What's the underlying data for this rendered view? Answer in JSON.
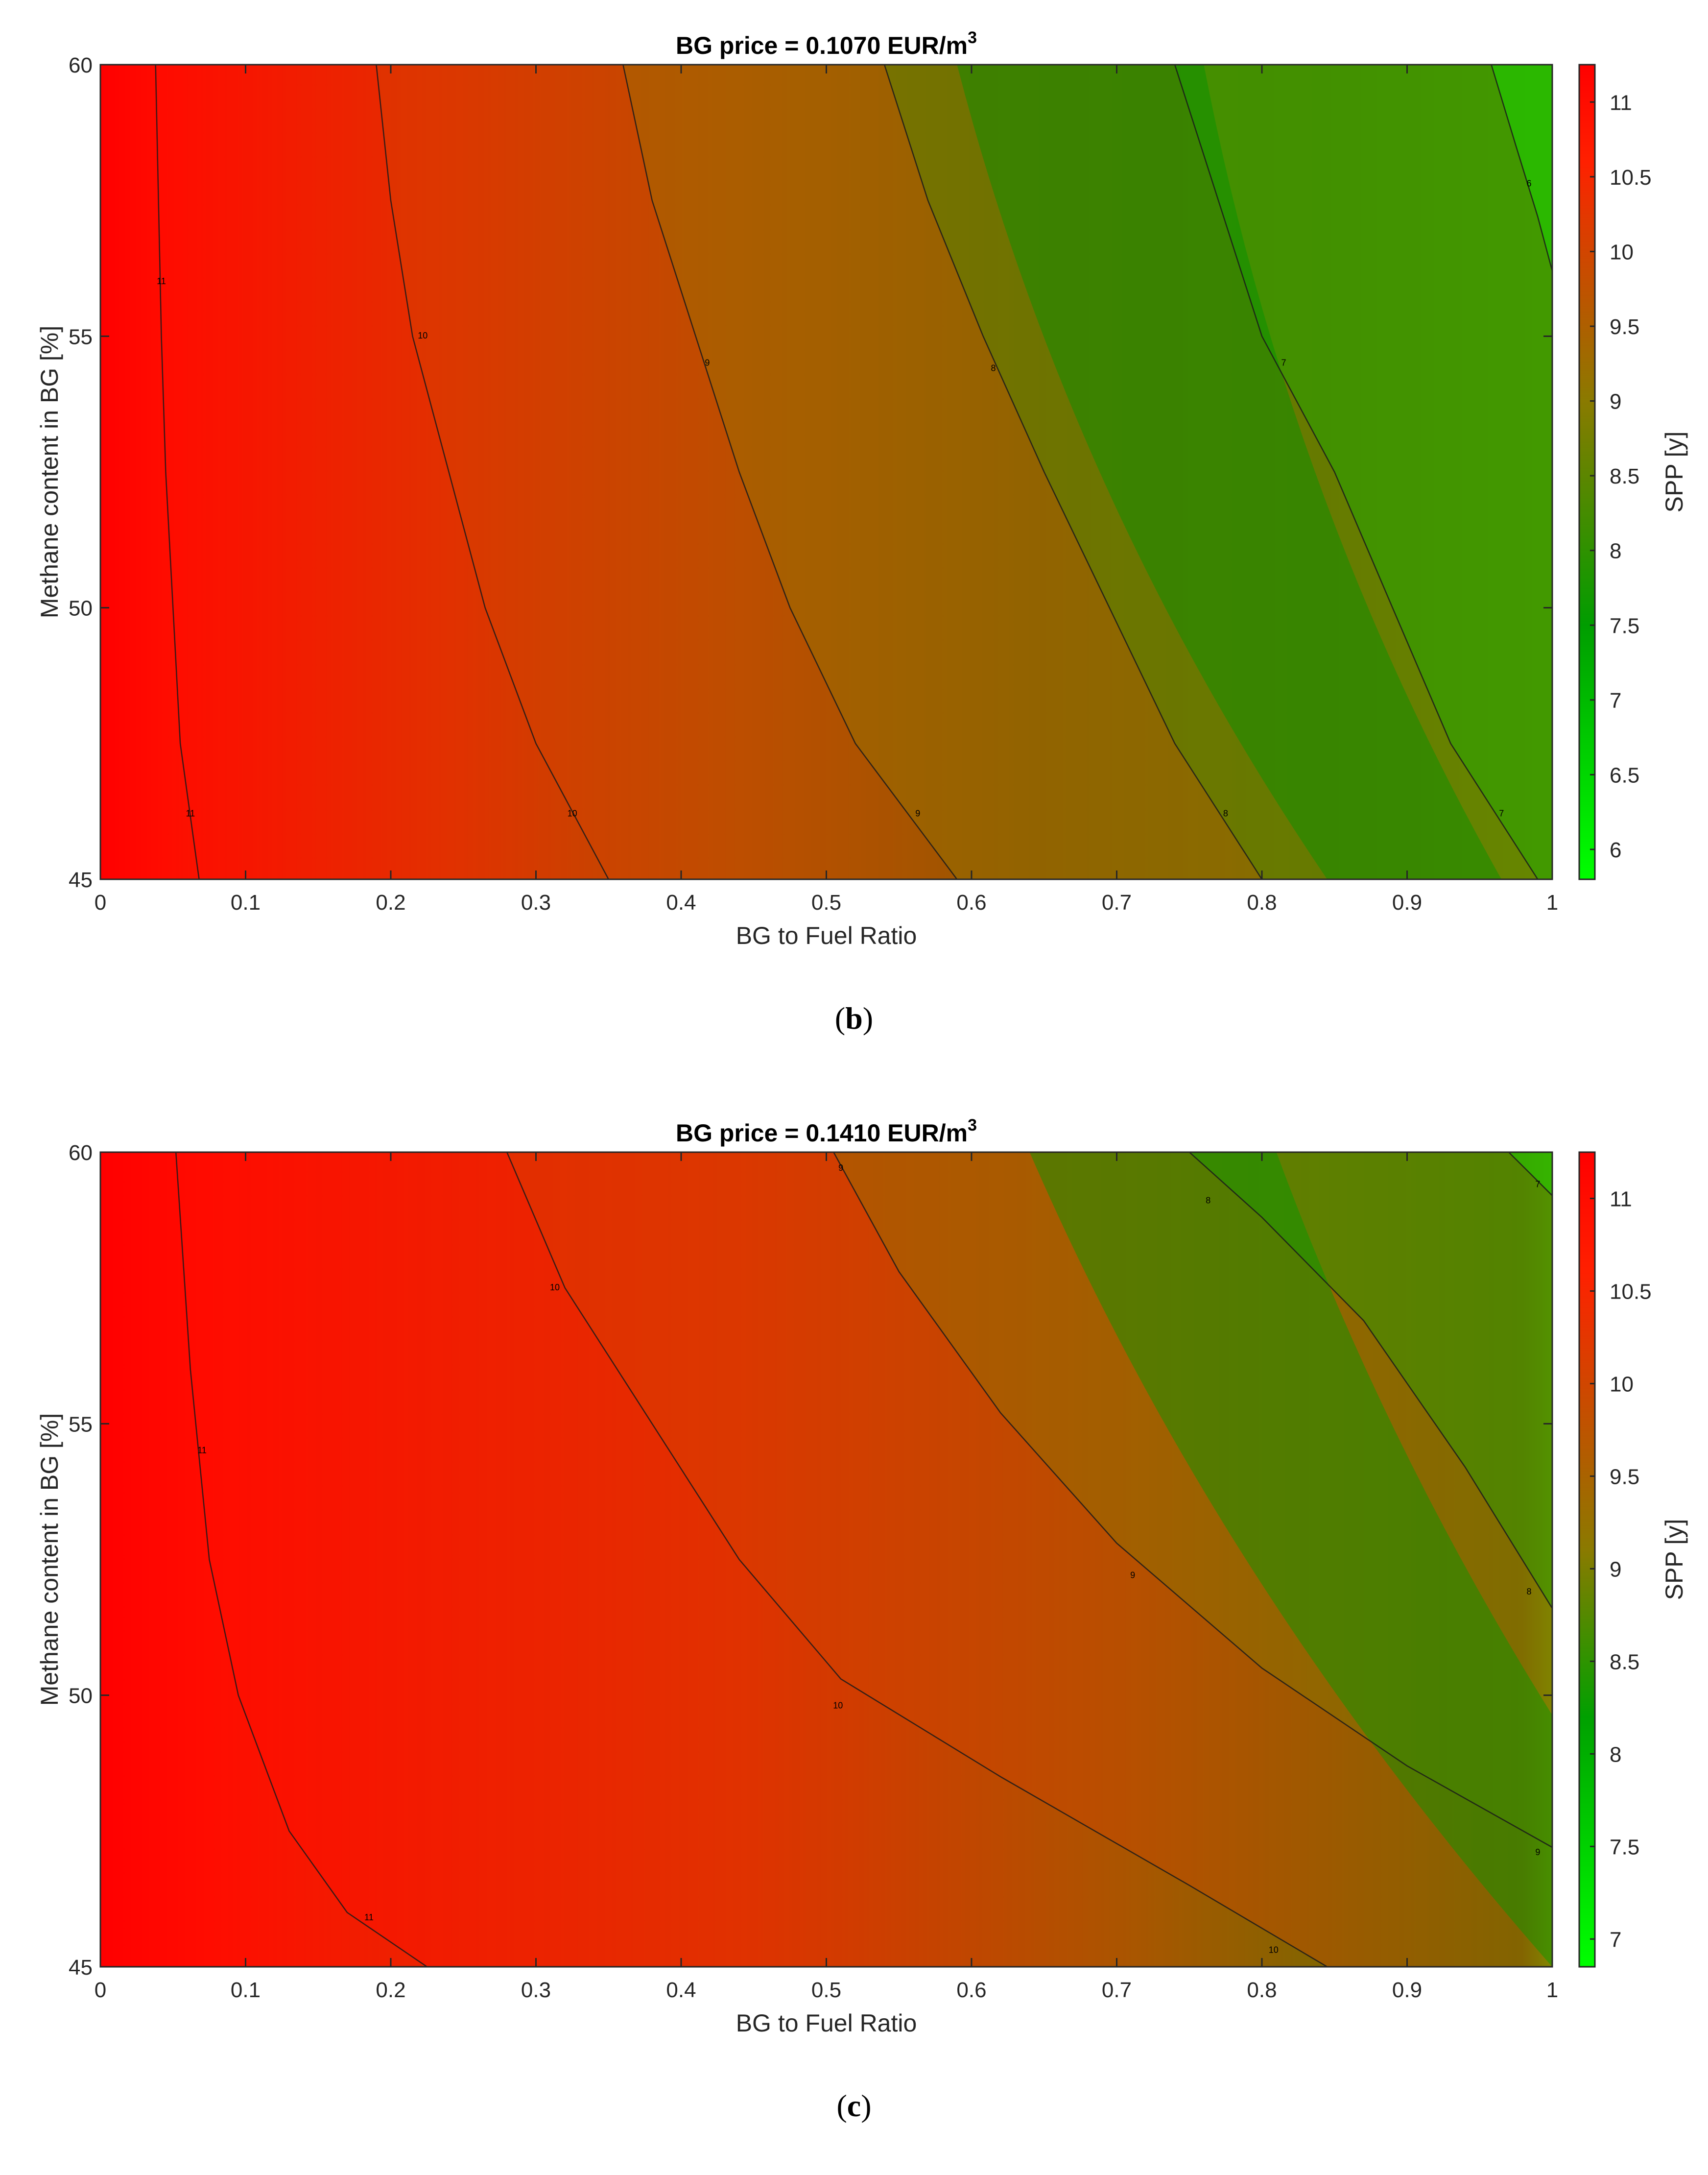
{
  "chart_data": [
    {
      "type": "heatmap",
      "id": "b",
      "title": "BG price = 0.1070 EUR/m",
      "title_superscript": "3",
      "xlabel": "BG to Fuel Ratio",
      "ylabel": "Methane content in BG [%]",
      "colorbar_label": "SPP [y]",
      "panel_label": "b",
      "xlim": [
        0,
        1
      ],
      "ylim": [
        45,
        60
      ],
      "x_ticks": [
        0,
        0.1,
        0.2,
        0.3,
        0.4,
        0.5,
        0.6,
        0.7,
        0.8,
        0.9,
        1
      ],
      "x_tick_labels": [
        "0",
        "0.1",
        "0.2",
        "0.3",
        "0.4",
        "0.5",
        "0.6",
        "0.7",
        "0.8",
        "0.9",
        "1"
      ],
      "y_ticks": [
        45,
        50,
        55,
        60
      ],
      "y_tick_labels": [
        "45",
        "50",
        "55",
        "60"
      ],
      "colorbar_range": [
        5.8,
        11.25
      ],
      "colorbar_ticks": [
        6,
        6.5,
        7,
        7.5,
        8,
        8.5,
        9,
        9.5,
        10,
        10.5,
        11
      ],
      "colorbar_tick_labels": [
        "6",
        "6.5",
        "7",
        "7.5",
        "8",
        "8.5",
        "9",
        "9.5",
        "10",
        "10.5",
        "11"
      ],
      "colormap": [
        {
          "v": 5.8,
          "color": "#00ff00"
        },
        {
          "v": 7.5,
          "color": "#009d00"
        },
        {
          "v": 9.0,
          "color": "#8a7a00"
        },
        {
          "v": 10.2,
          "color": "#e03a00"
        },
        {
          "v": 10.6,
          "color": "#ff2000"
        },
        {
          "v": 11.25,
          "color": "#ff0000"
        }
      ],
      "contours": [
        {
          "level": 11,
          "label": "11",
          "points": [
            [
              0.038,
              60
            ],
            [
              0.04,
              57.5
            ],
            [
              0.042,
              55
            ],
            [
              0.045,
              52.5
            ],
            [
              0.05,
              50
            ],
            [
              0.055,
              47.5
            ],
            [
              0.068,
              45
            ]
          ],
          "label_at": [
            [
              0.042,
              56
            ],
            [
              0.062,
              46.2
            ]
          ]
        },
        {
          "level": 10,
          "label": "10",
          "points": [
            [
              0.19,
              60
            ],
            [
              0.2,
              57.5
            ],
            [
              0.215,
              55
            ],
            [
              0.24,
              52.5
            ],
            [
              0.265,
              50
            ],
            [
              0.3,
              47.5
            ],
            [
              0.35,
              45
            ]
          ],
          "label_at": [
            [
              0.222,
              55
            ],
            [
              0.325,
              46.2
            ]
          ]
        },
        {
          "level": 9,
          "label": "9",
          "points": [
            [
              0.36,
              60
            ],
            [
              0.38,
              57.5
            ],
            [
              0.41,
              55
            ],
            [
              0.44,
              52.5
            ],
            [
              0.475,
              50
            ],
            [
              0.52,
              47.5
            ],
            [
              0.59,
              45
            ]
          ],
          "label_at": [
            [
              0.418,
              54.5
            ],
            [
              0.563,
              46.2
            ]
          ]
        },
        {
          "level": 8,
          "label": "8",
          "points": [
            [
              0.54,
              60
            ],
            [
              0.57,
              57.5
            ],
            [
              0.608,
              55
            ],
            [
              0.65,
              52.5
            ],
            [
              0.695,
              50
            ],
            [
              0.74,
              47.5
            ],
            [
              0.8,
              45
            ]
          ],
          "label_at": [
            [
              0.615,
              54.4
            ],
            [
              0.775,
              46.2
            ]
          ]
        },
        {
          "level": 7,
          "label": "7",
          "points": [
            [
              0.74,
              60
            ],
            [
              0.77,
              57.5
            ],
            [
              0.8,
              55
            ],
            [
              0.85,
              52.5
            ],
            [
              0.89,
              50
            ],
            [
              0.93,
              47.5
            ],
            [
              0.99,
              45
            ]
          ],
          "label_at": [
            [
              0.815,
              54.5
            ],
            [
              0.965,
              46.2
            ]
          ]
        },
        {
          "level": 6,
          "label": "6",
          "points": [
            [
              0.958,
              60
            ],
            [
              0.975,
              58.5
            ],
            [
              0.99,
              57.2
            ],
            [
              1.0,
              56.2
            ]
          ],
          "label_at": [
            [
              0.984,
              57.8
            ]
          ]
        }
      ],
      "gradient_band": {
        "x_at_45": 0.845,
        "x_at_60": 0.59,
        "color": "#009300"
      }
    },
    {
      "type": "heatmap",
      "id": "c",
      "title": "BG price = 0.1410 EUR/m",
      "title_superscript": "3",
      "xlabel": "BG to Fuel Ratio",
      "ylabel": "Methane content in BG [%]",
      "colorbar_label": "SPP [y]",
      "panel_label": "c",
      "xlim": [
        0,
        1
      ],
      "ylim": [
        45,
        60
      ],
      "x_ticks": [
        0,
        0.1,
        0.2,
        0.3,
        0.4,
        0.5,
        0.6,
        0.7,
        0.8,
        0.9,
        1
      ],
      "x_tick_labels": [
        "0",
        "0.1",
        "0.2",
        "0.3",
        "0.4",
        "0.5",
        "0.6",
        "0.7",
        "0.8",
        "0.9",
        "1"
      ],
      "y_ticks": [
        45,
        50,
        55,
        60
      ],
      "y_tick_labels": [
        "45",
        "50",
        "55",
        "60"
      ],
      "colorbar_range": [
        6.85,
        11.25
      ],
      "colorbar_ticks": [
        7,
        7.5,
        8,
        8.5,
        9,
        9.5,
        10,
        10.5,
        11
      ],
      "colorbar_tick_labels": [
        "7",
        "7.5",
        "8",
        "8.5",
        "9",
        "9.5",
        "10",
        "10.5",
        "11"
      ],
      "colormap": [
        {
          "v": 6.85,
          "color": "#00ff00"
        },
        {
          "v": 8.2,
          "color": "#00a000"
        },
        {
          "v": 9.1,
          "color": "#8a7a00"
        },
        {
          "v": 10.2,
          "color": "#e03a00"
        },
        {
          "v": 10.6,
          "color": "#ff2000"
        },
        {
          "v": 11.25,
          "color": "#ff0000"
        }
      ],
      "contours": [
        {
          "level": 11,
          "label": "11",
          "points": [
            [
              0.052,
              60
            ],
            [
              0.062,
              56
            ],
            [
              0.075,
              52.5
            ],
            [
              0.095,
              50
            ],
            [
              0.13,
              47.5
            ],
            [
              0.17,
              46
            ],
            [
              0.225,
              45
            ]
          ],
          "label_at": [
            [
              0.07,
              54.5
            ],
            [
              0.185,
              45.9
            ]
          ]
        },
        {
          "level": 10,
          "label": "10",
          "points": [
            [
              0.28,
              60
            ],
            [
              0.32,
              57.5
            ],
            [
              0.38,
              55
            ],
            [
              0.44,
              52.5
            ],
            [
              0.51,
              50.3
            ],
            [
              0.62,
              48.5
            ],
            [
              0.75,
              46.5
            ],
            [
              0.845,
              45
            ]
          ],
          "label_at": [
            [
              0.313,
              57.5
            ],
            [
              0.508,
              49.8
            ],
            [
              0.808,
              45.3
            ]
          ]
        },
        {
          "level": 9,
          "label": "9",
          "points": [
            [
              0.505,
              60
            ],
            [
              0.55,
              57.8
            ],
            [
              0.62,
              55.2
            ],
            [
              0.7,
              52.8
            ],
            [
              0.8,
              50.5
            ],
            [
              0.9,
              48.7
            ],
            [
              1.0,
              47.2
            ]
          ],
          "label_at": [
            [
              0.51,
              59.7
            ],
            [
              0.711,
              52.2
            ],
            [
              0.99,
              47.1
            ]
          ]
        },
        {
          "level": 8,
          "label": "8",
          "points": [
            [
              0.75,
              60
            ],
            [
              0.8,
              58.8
            ],
            [
              0.87,
              56.9
            ],
            [
              0.94,
              54.2
            ],
            [
              1.0,
              51.6
            ]
          ],
          "label_at": [
            [
              0.763,
              59.1
            ],
            [
              0.984,
              51.9
            ]
          ]
        },
        {
          "level": 7,
          "label": "7",
          "points": [
            [
              0.97,
              60
            ],
            [
              0.985,
              59.6
            ],
            [
              1.0,
              59.2
            ]
          ],
          "label_at": [
            [
              0.99,
              59.4
            ]
          ]
        }
      ],
      "gradient_band": {
        "x_at_45": 1.0,
        "x_at_60": 0.64,
        "color": "#009800"
      }
    }
  ]
}
